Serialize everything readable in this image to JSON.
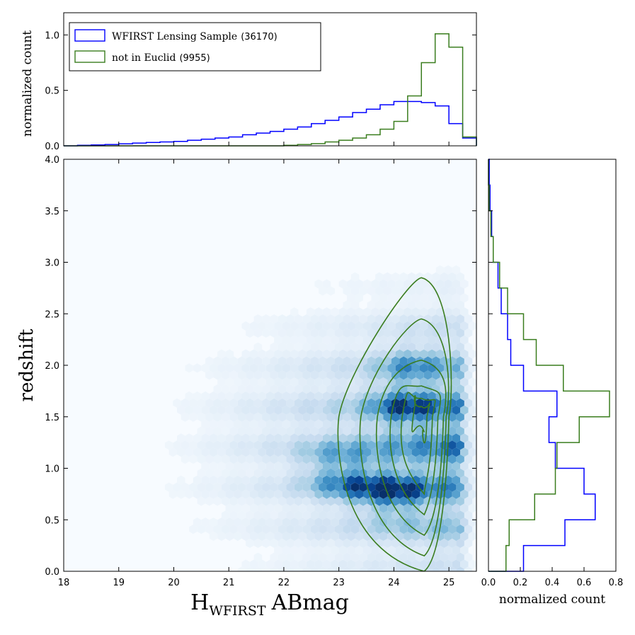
{
  "chart_data": [
    {
      "panel": "top-histogram",
      "type": "line",
      "ylabel": "normalized count",
      "xlim": [
        18,
        25.5
      ],
      "ylim": [
        0,
        1.2
      ],
      "yticks": [
        "0.0",
        "0.5",
        "1.0"
      ],
      "legend": {
        "placement": "top-left",
        "entries": [
          {
            "label": "WFIRST Lensing Sample",
            "count": "(36170)",
            "color": "#0000ff"
          },
          {
            "label": "not in Euclid",
            "count": "(9955)",
            "color": "#3a7d1e"
          }
        ]
      },
      "bin_edges": [
        18.0,
        18.25,
        18.5,
        18.75,
        19.0,
        19.25,
        19.5,
        19.75,
        20.0,
        20.25,
        20.5,
        20.75,
        21.0,
        21.25,
        21.5,
        21.75,
        22.0,
        22.25,
        22.5,
        22.75,
        23.0,
        23.25,
        23.5,
        23.75,
        24.0,
        24.25,
        24.5,
        24.75,
        25.0,
        25.25
      ],
      "series": [
        {
          "name": "WFIRST Lensing Sample",
          "color": "#0000ff",
          "values": [
            0.0,
            0.005,
            0.008,
            0.012,
            0.018,
            0.025,
            0.03,
            0.035,
            0.04,
            0.05,
            0.06,
            0.07,
            0.08,
            0.1,
            0.115,
            0.13,
            0.15,
            0.17,
            0.2,
            0.23,
            0.26,
            0.3,
            0.33,
            0.37,
            0.4,
            0.4,
            0.39,
            0.36,
            0.2,
            0.07
          ]
        },
        {
          "name": "not in Euclid",
          "color": "#3a7d1e",
          "values": [
            0,
            0,
            0,
            0,
            0,
            0,
            0,
            0,
            0,
            0,
            0,
            0,
            0,
            0,
            0,
            0,
            0.005,
            0.012,
            0.02,
            0.035,
            0.05,
            0.07,
            0.1,
            0.15,
            0.22,
            0.45,
            0.75,
            1.01,
            0.89,
            0.08
          ]
        }
      ]
    },
    {
      "panel": "main-hexbin",
      "type": "heatmap",
      "xlabel_main": "H",
      "xlabel_sub": "WFIRST",
      "xlabel_tail": "ABmag",
      "ylabel": "redshift",
      "xlim": [
        18,
        25.5
      ],
      "ylim": [
        0,
        4
      ],
      "xticks": [
        "18",
        "19",
        "20",
        "21",
        "22",
        "23",
        "24",
        "25"
      ],
      "yticks": [
        "0.0",
        "0.5",
        "1.0",
        "1.5",
        "2.0",
        "2.5",
        "3.0",
        "3.5",
        "4.0"
      ],
      "density_peaks": [
        {
          "x": 24.0,
          "y": 0.75,
          "weight": 1.0
        },
        {
          "x": 23.3,
          "y": 0.9,
          "weight": 0.7
        },
        {
          "x": 24.2,
          "y": 1.6,
          "weight": 0.8
        },
        {
          "x": 22.8,
          "y": 1.0,
          "weight": 0.5
        },
        {
          "x": 24.3,
          "y": 2.0,
          "weight": 0.5
        }
      ],
      "contours": {
        "color": "#3a7d1e",
        "center": {
          "x": 24.5,
          "y": 1.5
        },
        "levels": [
          {
            "xmin": 23.0,
            "xmax": 25.0,
            "ymin": 0.0,
            "ymax": 2.85
          },
          {
            "xmin": 23.4,
            "xmax": 24.95,
            "ymin": 0.15,
            "ymax": 2.45
          },
          {
            "xmin": 23.7,
            "xmax": 24.9,
            "ymin": 0.35,
            "ymax": 2.05
          },
          {
            "xmin": 23.95,
            "xmax": 24.8,
            "ymin": 0.55,
            "ymax": 1.8
          },
          {
            "xmin": 24.15,
            "xmax": 24.7,
            "ymin": 0.75,
            "ymax": 1.68
          },
          {
            "xmin": 24.35,
            "xmax": 24.6,
            "ymin": 1.35,
            "ymax": 1.6
          }
        ]
      }
    },
    {
      "panel": "right-histogram",
      "type": "line",
      "xlabel": "normalized count",
      "xlim": [
        0,
        0.8
      ],
      "ylim": [
        0,
        4
      ],
      "xticks": [
        "0.0",
        "0.2",
        "0.4",
        "0.6",
        "0.8"
      ],
      "bin_edges": [
        0.0,
        0.25,
        0.5,
        0.75,
        1.0,
        1.25,
        1.5,
        1.75,
        2.0,
        2.25,
        2.5,
        2.75,
        3.0,
        3.25,
        3.5,
        3.75,
        4.0
      ],
      "series": [
        {
          "name": "WFIRST Lensing Sample",
          "color": "#0000ff",
          "values": [
            0.22,
            0.48,
            0.67,
            0.6,
            0.42,
            0.38,
            0.43,
            0.22,
            0.14,
            0.12,
            0.08,
            0.06,
            0.03,
            0.02,
            0.01,
            0.005
          ]
        },
        {
          "name": "not in Euclid",
          "color": "#3a7d1e",
          "values": [
            0.11,
            0.13,
            0.29,
            0.42,
            0.43,
            0.57,
            0.76,
            0.47,
            0.3,
            0.22,
            0.12,
            0.07,
            0.03,
            0.015,
            0.005,
            0
          ]
        }
      ]
    }
  ]
}
